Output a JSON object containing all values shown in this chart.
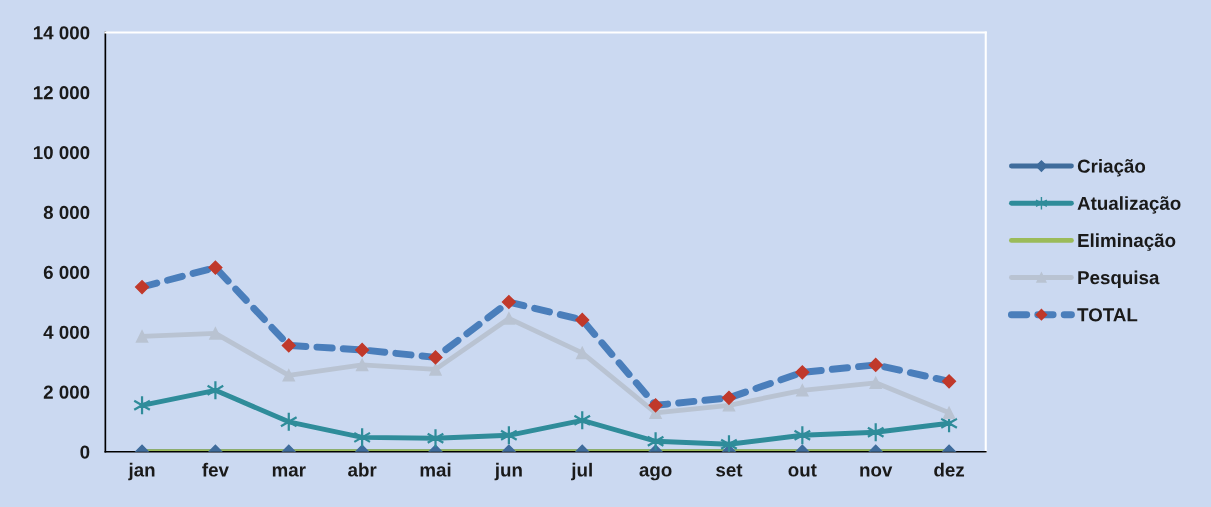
{
  "chart_data": {
    "type": "line",
    "categories": [
      "jan",
      "fev",
      "mar",
      "abr",
      "mai",
      "jun",
      "jul",
      "ago",
      "set",
      "out",
      "nov",
      "dez"
    ],
    "series": [
      {
        "name": "Criação",
        "color": "#3f6c9c",
        "marker": "diamond",
        "line_style": "solid",
        "values": [
          0,
          0,
          0,
          0,
          0,
          0,
          0,
          0,
          0,
          0,
          0,
          0
        ]
      },
      {
        "name": "Atualização",
        "color": "#2f8c9a",
        "marker": "cross",
        "line_style": "solid",
        "values": [
          1550,
          2050,
          1000,
          480,
          450,
          550,
          1050,
          350,
          250,
          550,
          650,
          950
        ]
      },
      {
        "name": "Eliminação",
        "color": "#9bbb59",
        "marker": "none",
        "line_style": "solid",
        "values": [
          0,
          0,
          0,
          0,
          0,
          0,
          0,
          0,
          0,
          0,
          0,
          0
        ]
      },
      {
        "name": "Pesquisa",
        "color": "#b9c3d2",
        "marker": "triangle",
        "line_style": "solid",
        "values": [
          3850,
          3950,
          2550,
          2900,
          2750,
          4450,
          3300,
          1300,
          1550,
          2050,
          2300,
          1300
        ]
      },
      {
        "name": "TOTAL",
        "color": "#4a7ebb",
        "colors": [
          "#c0392b",
          "#c0392b",
          "#c0392b",
          "#c0392b",
          "#c0392b",
          "#c0392b",
          "#c0392b",
          "#c0392b",
          "#c0392b",
          "#c0392b",
          "#c0392b",
          "#c0392b"
        ],
        "marker": "diamond",
        "line_style": "dashed",
        "values": [
          5500,
          6150,
          3550,
          3400,
          3150,
          5000,
          4400,
          1550,
          1800,
          2650,
          2900,
          2350
        ]
      }
    ],
    "ylim": [
      0,
      14000
    ],
    "yticks": [
      0,
      {
        "value": 2000,
        "label": "2 000"
      },
      {
        "value": 4000,
        "label": "4 000"
      },
      {
        "value": 6000,
        "label": "6 000"
      },
      {
        "value": 8000,
        "label": "8 000"
      },
      {
        "value": 10000,
        "label": "10 000"
      },
      {
        "value": 12000,
        "label": "12 000"
      },
      {
        "value": 14000,
        "label": "14 000"
      }
    ],
    "grid": false,
    "legend": "right"
  }
}
